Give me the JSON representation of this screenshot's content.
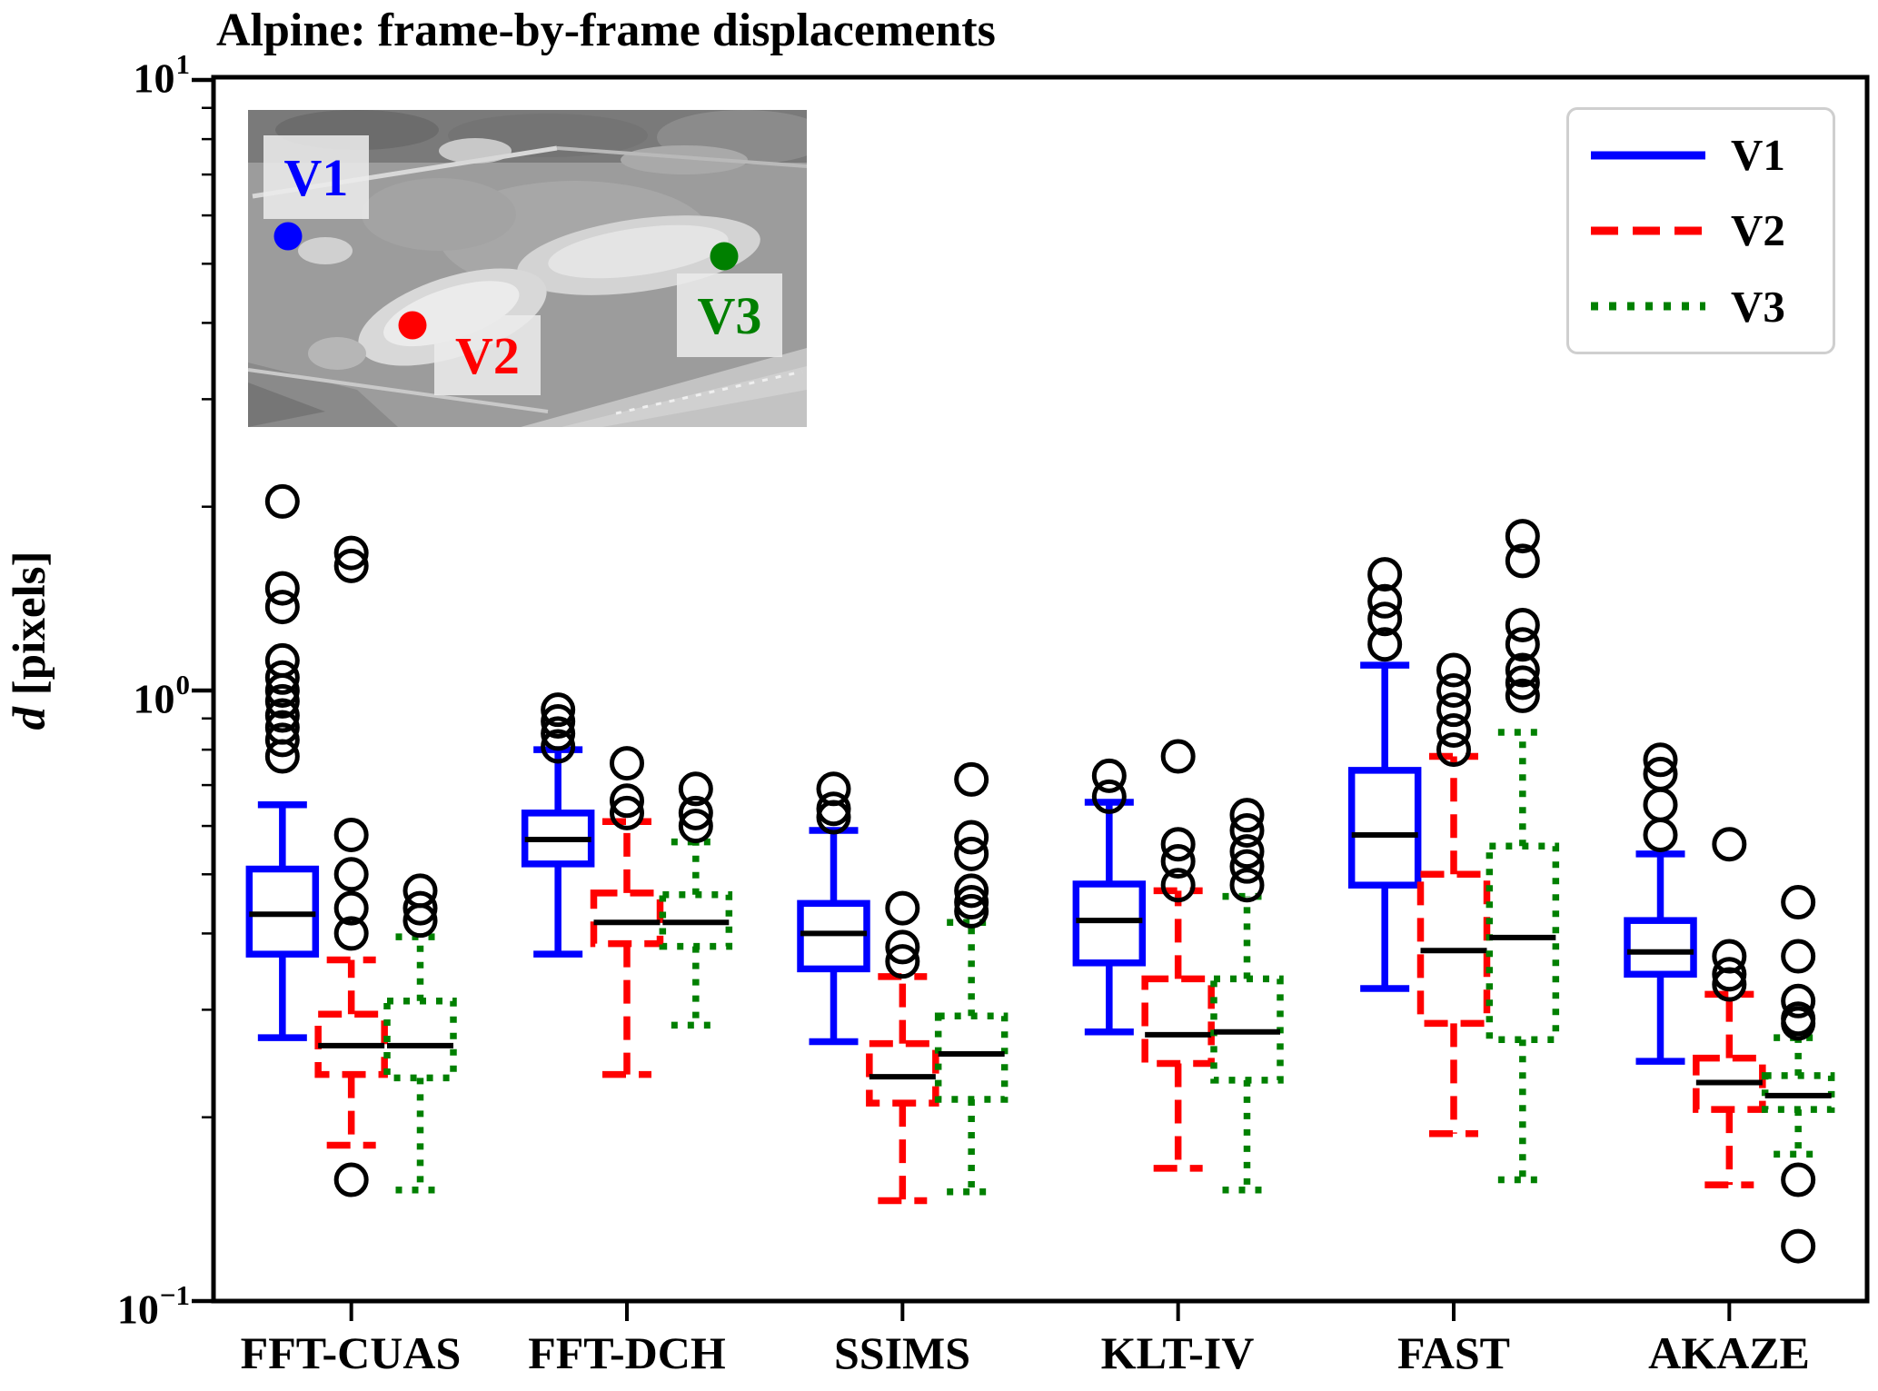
{
  "title": "Alpine: frame-by-frame displacements",
  "y_axis": {
    "symbol": "d",
    "unit": " [pixels]"
  },
  "y_ticks": [
    {
      "base": "10",
      "exp": "1",
      "value": 10
    },
    {
      "base": "10",
      "exp": "0",
      "value": 1
    },
    {
      "base": "10",
      "exp": "−1",
      "value": 0.1
    }
  ],
  "legend": {
    "items": [
      {
        "label": "V1",
        "color": "#0000ff",
        "linestyle": "solid"
      },
      {
        "label": "V2",
        "color": "#ff0000",
        "linestyle": "dashed"
      },
      {
        "label": "V3",
        "color": "#008000",
        "linestyle": "dotted"
      }
    ]
  },
  "inset": {
    "points": [
      {
        "label": "V1",
        "color": "#0000ff"
      },
      {
        "label": "V2",
        "color": "#ff0000"
      },
      {
        "label": "V3",
        "color": "#008000"
      }
    ]
  },
  "chart_data": {
    "type": "boxplot",
    "title": "Alpine: frame-by-frame displacements",
    "ylabel": "d [pixels]",
    "yscale": "log",
    "ylim": [
      0.1,
      10
    ],
    "grid": false,
    "legend_position": "upper right",
    "categories": [
      "FFT-CUAS",
      "FFT-DCH",
      "SSIMS",
      "KLT-IV",
      "FAST",
      "AKAZE"
    ],
    "series": [
      {
        "name": "V1",
        "color": "#0000ff",
        "linestyle": "solid",
        "boxes": [
          {
            "whislo": 0.27,
            "q1": 0.37,
            "med": 0.43,
            "q3": 0.51,
            "whishi": 0.65,
            "fliers": [
              2.04,
              1.47,
              1.37,
              1.12,
              1.05,
              1.0,
              0.96,
              0.91,
              0.87,
              0.83,
              0.78
            ]
          },
          {
            "whislo": 0.37,
            "q1": 0.52,
            "med": 0.57,
            "q3": 0.63,
            "whishi": 0.8,
            "fliers": [
              0.93,
              0.89,
              0.85,
              0.81
            ]
          },
          {
            "whislo": 0.266,
            "q1": 0.35,
            "med": 0.4,
            "q3": 0.448,
            "whishi": 0.59,
            "fliers": [
              0.69,
              0.64,
              0.62
            ]
          },
          {
            "whislo": 0.276,
            "q1": 0.358,
            "med": 0.42,
            "q3": 0.482,
            "whishi": 0.656,
            "fliers": [
              0.725,
              0.67
            ]
          },
          {
            "whislo": 0.325,
            "q1": 0.48,
            "med": 0.58,
            "q3": 0.74,
            "whishi": 1.1,
            "fliers": [
              1.55,
              1.4,
              1.31,
              1.19
            ]
          },
          {
            "whislo": 0.247,
            "q1": 0.343,
            "med": 0.373,
            "q3": 0.42,
            "whishi": 0.54,
            "fliers": [
              0.77,
              0.73,
              0.65,
              0.58
            ]
          }
        ]
      },
      {
        "name": "V2",
        "color": "#ff0000",
        "linestyle": "dashed",
        "boxes": [
          {
            "whislo": 0.18,
            "q1": 0.235,
            "med": 0.262,
            "q3": 0.295,
            "whishi": 0.362,
            "fliers": [
              1.68,
              1.6,
              0.58,
              0.5,
              0.44,
              0.4,
              0.158
            ]
          },
          {
            "whislo": 0.235,
            "q1": 0.385,
            "med": 0.417,
            "q3": 0.466,
            "whishi": 0.61,
            "fliers": [
              0.76,
              0.66,
              0.63
            ]
          },
          {
            "whislo": 0.146,
            "q1": 0.211,
            "med": 0.233,
            "q3": 0.264,
            "whishi": 0.34,
            "fliers": [
              0.44,
              0.38,
              0.36
            ]
          },
          {
            "whislo": 0.165,
            "q1": 0.245,
            "med": 0.273,
            "q3": 0.337,
            "whishi": 0.47,
            "fliers": [
              0.78,
              0.56,
              0.525,
              0.48
            ]
          },
          {
            "whislo": 0.188,
            "q1": 0.285,
            "med": 0.375,
            "q3": 0.5,
            "whishi": 0.78,
            "fliers": [
              1.08,
              1.0,
              0.93,
              0.86,
              0.8
            ]
          },
          {
            "whislo": 0.155,
            "q1": 0.206,
            "med": 0.228,
            "q3": 0.25,
            "whishi": 0.318,
            "fliers": [
              0.56,
              0.367,
              0.343,
              0.33
            ]
          }
        ]
      },
      {
        "name": "V3",
        "color": "#008000",
        "linestyle": "dotted",
        "boxes": [
          {
            "whislo": 0.152,
            "q1": 0.232,
            "med": 0.262,
            "q3": 0.31,
            "whishi": 0.395,
            "fliers": [
              0.47,
              0.44,
              0.42
            ]
          },
          {
            "whislo": 0.283,
            "q1": 0.381,
            "med": 0.417,
            "q3": 0.463,
            "whishi": 0.565,
            "fliers": [
              0.69,
              0.63,
              0.6
            ]
          },
          {
            "whislo": 0.151,
            "q1": 0.214,
            "med": 0.254,
            "q3": 0.293,
            "whishi": 0.417,
            "fliers": [
              0.715,
              0.575,
              0.54,
              0.47,
              0.45,
              0.435
            ]
          },
          {
            "whislo": 0.152,
            "q1": 0.23,
            "med": 0.276,
            "q3": 0.337,
            "whishi": 0.46,
            "fliers": [
              0.625,
              0.59,
              0.545,
              0.515,
              0.48
            ]
          },
          {
            "whislo": 0.158,
            "q1": 0.268,
            "med": 0.394,
            "q3": 0.556,
            "whishi": 0.854,
            "fliers": [
              1.79,
              1.63,
              1.28,
              1.19,
              1.08,
              1.03,
              0.98
            ]
          },
          {
            "whislo": 0.174,
            "q1": 0.206,
            "med": 0.217,
            "q3": 0.234,
            "whishi": 0.27,
            "fliers": [
              0.45,
              0.367,
              0.31,
              0.29,
              0.285,
              0.158,
              0.123
            ]
          }
        ]
      }
    ]
  }
}
